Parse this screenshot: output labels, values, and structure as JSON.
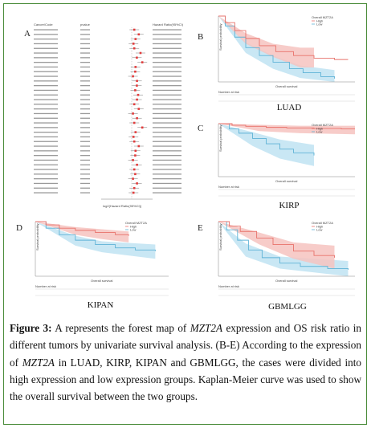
{
  "panels": {
    "A": {
      "letter": "A",
      "col_headers": [
        "Cancer/Code",
        "pvalue",
        "Hazard Ratio(95%CI)"
      ],
      "xlabel": "log2(Hazard Ratio(95%CI))"
    },
    "B": {
      "letter": "B",
      "label": "LUAD"
    },
    "C": {
      "letter": "C",
      "label": "KIRP"
    },
    "D": {
      "letter": "D",
      "label": "KIPAN"
    },
    "E": {
      "letter": "E",
      "label": "GBMLGG"
    }
  },
  "km_common": {
    "legend_title": "Overall MZT2A",
    "legend_hi": "High",
    "legend_lo": "Low",
    "xlabel": "Overall survival",
    "ylabel": "Survival probability",
    "risk_label": "Number at risk",
    "hi_color": "#e8726b",
    "lo_color": "#5fb3d6",
    "hi_fill": "#f6c3bf",
    "lo_fill": "#bfe3f2"
  },
  "caption": {
    "fig_label": "Figure 3:",
    "text_1": " A represents the forest map of ",
    "gene_1": "MZT2A",
    "text_2": " expression and OS risk ratio in different tumors by univariate survival analysis. (B-E) According to the expression of ",
    "gene_2": "MZT2A",
    "text_3": " in LUAD, KIRP, KIPAN and GBMLGG, the cases were divided into high expression and low expression groups. Kaplan-Meier curve was used to show the overall survival between the two groups."
  }
}
